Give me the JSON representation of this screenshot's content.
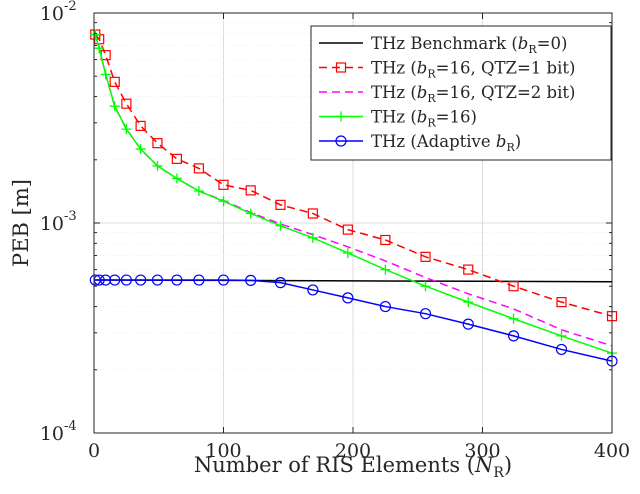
{
  "chart_data": {
    "type": "line",
    "xlabel": "Number of RIS Elements (N_R)",
    "ylabel": "PEB [m]",
    "xlim": [
      0,
      400
    ],
    "ylim": [
      0.0001,
      0.01
    ],
    "yscale": "log",
    "grid": true,
    "legend_position": "top-right",
    "x_ticks": [
      {
        "value": 0,
        "label": "0"
      },
      {
        "value": 100,
        "label": "100"
      },
      {
        "value": 200,
        "label": "200"
      },
      {
        "value": 300,
        "label": "300"
      },
      {
        "value": 400,
        "label": "400"
      }
    ],
    "y_ticks": [
      {
        "value": 0.0001,
        "base": "10",
        "exp": "-4"
      },
      {
        "value": 0.001,
        "base": "10",
        "exp": "-3"
      },
      {
        "value": 0.01,
        "base": "10",
        "exp": "-2"
      }
    ],
    "series": [
      {
        "name": "THz Benchmark (b_R=0)",
        "color": "#000000",
        "line": "solid",
        "marker": "none",
        "x": [
          0,
          100,
          200,
          300,
          400
        ],
        "y": [
          0.000535,
          0.000533,
          0.00053,
          0.000528,
          0.000525
        ]
      },
      {
        "name": "THz (b_R=16, QTZ=1 bit)",
        "color": "#ff0000",
        "line": "dashed",
        "marker": "square",
        "x": [
          1,
          4,
          9,
          16,
          25,
          36,
          49,
          64,
          81,
          100,
          121,
          144,
          169,
          196,
          225,
          256,
          289,
          324,
          361,
          400
        ],
        "y": [
          0.0079,
          0.0075,
          0.0063,
          0.0047,
          0.0037,
          0.0029,
          0.0024,
          0.00202,
          0.00182,
          0.00152,
          0.00143,
          0.00122,
          0.00111,
          0.00093,
          0.00083,
          0.00069,
          0.0006,
          0.0005,
          0.00042,
          0.00036
        ]
      },
      {
        "name": "THz (b_R=16, QTZ=2 bit)",
        "color": "#ff00ff",
        "line": "dashed",
        "marker": "none",
        "x": [
          1,
          4,
          9,
          16,
          25,
          36,
          49,
          64,
          81,
          100,
          121,
          144,
          169,
          196,
          225,
          256,
          289,
          324,
          361,
          400
        ],
        "y": [
          0.0079,
          0.0068,
          0.0051,
          0.0036,
          0.0028,
          0.00225,
          0.00187,
          0.00163,
          0.00142,
          0.00128,
          0.00112,
          0.00099,
          0.00088,
          0.00077,
          0.00066,
          0.00055,
          0.00046,
          0.00039,
          0.00031,
          0.00026
        ]
      },
      {
        "name": "THz (b_R=16)",
        "color": "#00ff00",
        "line": "solid",
        "marker": "plus",
        "x": [
          1,
          4,
          9,
          16,
          25,
          36,
          49,
          64,
          81,
          100,
          121,
          144,
          169,
          196,
          225,
          256,
          289,
          324,
          361,
          400
        ],
        "y": [
          0.0079,
          0.0068,
          0.0051,
          0.0036,
          0.0028,
          0.00225,
          0.00187,
          0.00163,
          0.00142,
          0.00127,
          0.00111,
          0.00097,
          0.00085,
          0.00072,
          0.0006,
          0.0005,
          0.00042,
          0.00035,
          0.00029,
          0.00024
        ]
      },
      {
        "name": "THz (Adaptive b_R)",
        "color": "#0000ff",
        "line": "solid",
        "marker": "circle",
        "x": [
          1,
          4,
          9,
          16,
          25,
          36,
          49,
          64,
          81,
          100,
          121,
          144,
          169,
          196,
          225,
          256,
          289,
          324,
          361,
          400
        ],
        "y": [
          0.000535,
          0.000535,
          0.000535,
          0.000535,
          0.000535,
          0.000535,
          0.000535,
          0.000535,
          0.000535,
          0.000535,
          0.000533,
          0.00052,
          0.00048,
          0.00044,
          0.0004,
          0.00037,
          0.00033,
          0.00029,
          0.00025,
          0.00022
        ]
      }
    ],
    "legend": [
      {
        "prefix": "THz Benchmark (",
        "var": "b",
        "sub": "R",
        "suffix": "=0)"
      },
      {
        "prefix": "THz (",
        "var": "b",
        "sub": "R",
        "suffix": "=16, QTZ=1 bit)"
      },
      {
        "prefix": "THz (",
        "var": "b",
        "sub": "R",
        "suffix": "=16, QTZ=2 bit)"
      },
      {
        "prefix": "THz (",
        "var": "b",
        "sub": "R",
        "suffix": "=16)"
      },
      {
        "prefix": "THz (Adaptive ",
        "var": "b",
        "sub": "R",
        "suffix": ")"
      }
    ],
    "xlabel_parts": {
      "prefix": "Number of RIS Elements (",
      "var": "N",
      "sub": "R",
      "suffix": ")"
    }
  }
}
